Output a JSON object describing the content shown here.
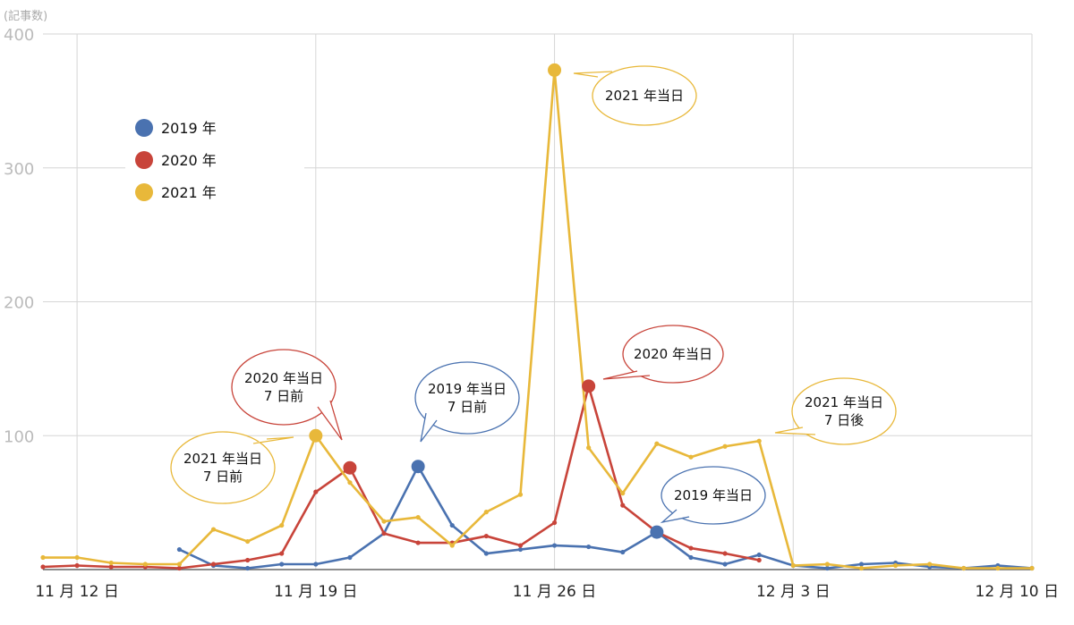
{
  "chart_data": {
    "type": "line",
    "y_unit": "(記事数)",
    "ylim": [
      0,
      400
    ],
    "yticks": [
      400,
      300,
      200,
      100
    ],
    "grid": true,
    "legend_position": "top-left",
    "x_range": [
      -1,
      28
    ],
    "xticks": [
      {
        "x": 0,
        "label": "11 月 12 日"
      },
      {
        "x": 7,
        "label": "11 月 19 日"
      },
      {
        "x": 14,
        "label": "11 月 26 日"
      },
      {
        "x": 21,
        "label": "12 月 3 日"
      },
      {
        "x": 28,
        "label": "12 月 10 日"
      }
    ],
    "series": [
      {
        "name": "2019 年",
        "color": "#4a72b0",
        "x": [
          3,
          4,
          5,
          6,
          7,
          8,
          9,
          10,
          11,
          12,
          13,
          14,
          15,
          16,
          17,
          18,
          19,
          20,
          21,
          22,
          23,
          24,
          25,
          26,
          27,
          28
        ],
        "values": [
          15,
          3,
          1,
          4,
          4,
          9,
          27,
          77,
          33,
          12,
          15,
          18,
          17,
          13,
          28,
          9,
          4,
          11,
          3,
          1,
          4,
          5,
          2,
          1,
          3,
          1
        ]
      },
      {
        "name": "2020 年",
        "color": "#c8443a",
        "x": [
          -1,
          0,
          1,
          2,
          3,
          4,
          5,
          6,
          7,
          8,
          9,
          10,
          11,
          12,
          13,
          14,
          15,
          16,
          17,
          18,
          19,
          20
        ],
        "values": [
          2,
          3,
          2,
          2,
          1,
          4,
          7,
          12,
          58,
          76,
          27,
          20,
          20,
          25,
          18,
          35,
          137,
          48,
          28,
          16,
          12,
          7
        ]
      },
      {
        "name": "2021 年",
        "color": "#e8b83a",
        "x": [
          -1,
          0,
          1,
          2,
          3,
          4,
          5,
          6,
          7,
          8,
          9,
          10,
          11,
          12,
          13,
          14,
          15,
          16,
          17,
          18,
          19,
          20,
          21,
          22,
          23,
          24,
          25,
          26,
          27,
          28
        ],
        "values": [
          9,
          9,
          5,
          4,
          4,
          30,
          21,
          33,
          100,
          65,
          36,
          39,
          18,
          43,
          56,
          373,
          91,
          57,
          94,
          84,
          92,
          96,
          3,
          4,
          1,
          3,
          4,
          1,
          1,
          1
        ]
      }
    ],
    "highlights": [
      {
        "series": 0,
        "x": 10,
        "y": 77
      },
      {
        "series": 0,
        "x": 17,
        "y": 28
      },
      {
        "series": 1,
        "x": 8,
        "y": 76
      },
      {
        "series": 1,
        "x": 15,
        "y": 137
      },
      {
        "series": 2,
        "x": 7,
        "y": 100
      },
      {
        "series": 2,
        "x": 14,
        "y": 373
      }
    ],
    "annotations": [
      {
        "id": "a2021-day",
        "lines": [
          "2021 年当日"
        ],
        "color": "#e8b83a"
      },
      {
        "id": "a2020-day",
        "lines": [
          "2020 年当日"
        ],
        "color": "#c8443a"
      },
      {
        "id": "a2020-7before",
        "lines": [
          "2020 年当日",
          "7 日前"
        ],
        "color": "#c8443a"
      },
      {
        "id": "a2019-7before",
        "lines": [
          "2019 年当日",
          "7 日前"
        ],
        "color": "#4a72b0"
      },
      {
        "id": "a2021-7before",
        "lines": [
          "2021 年当日",
          "7 日前"
        ],
        "color": "#e8b83a"
      },
      {
        "id": "a2021-7after",
        "lines": [
          "2021 年当日",
          "7 日後"
        ],
        "color": "#e8b83a"
      },
      {
        "id": "a2019-day",
        "lines": [
          "2019 年当日"
        ],
        "color": "#4a72b0"
      }
    ]
  }
}
